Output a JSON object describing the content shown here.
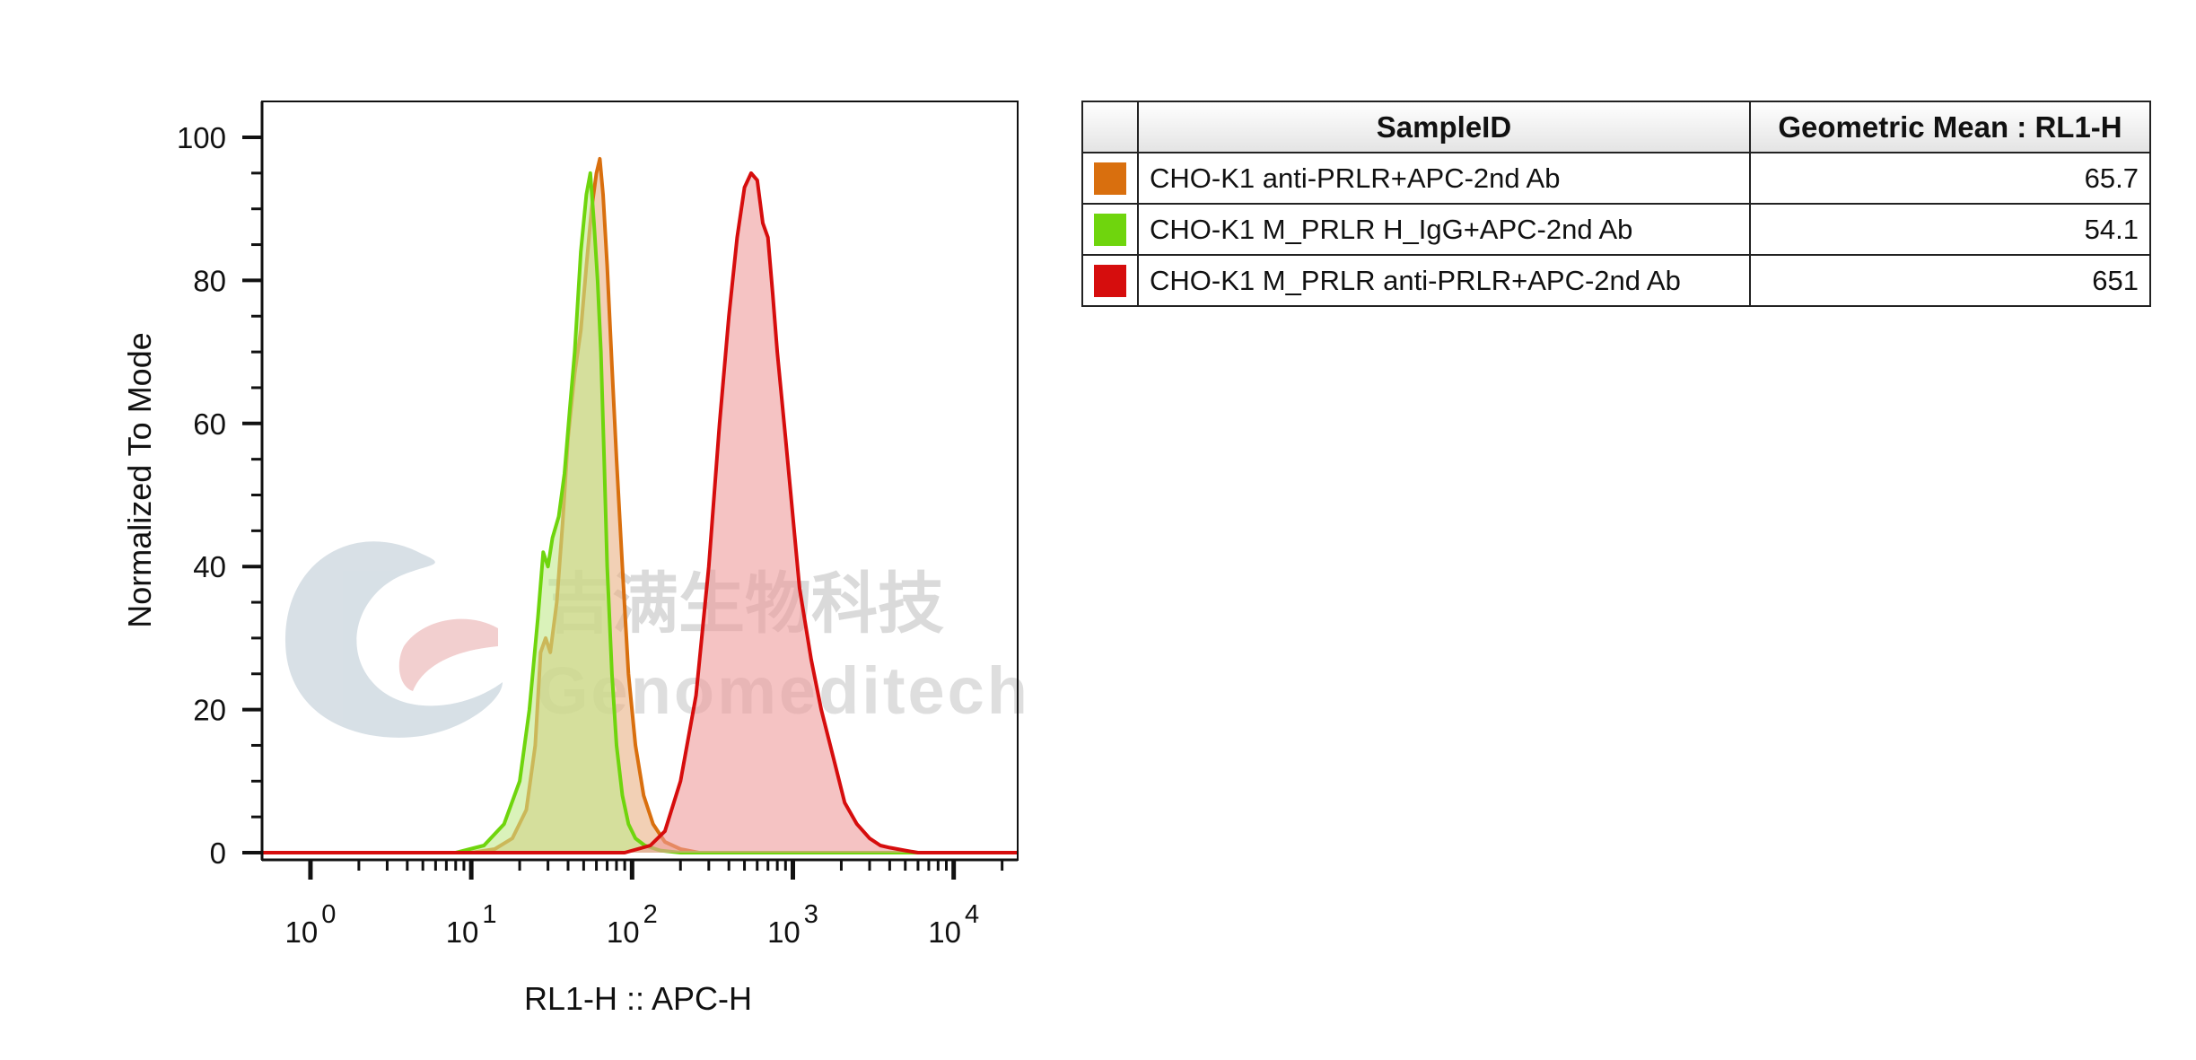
{
  "chart_data": {
    "type": "area",
    "x_scale": "log",
    "xlabel": "RL1-H :: APC-H",
    "ylabel": "Normalized To Mode",
    "xlim": [
      0.5,
      25000
    ],
    "ylim": [
      0,
      105
    ],
    "x_ticks": [
      {
        "value": 1,
        "base": "10",
        "exp": "0"
      },
      {
        "value": 10,
        "base": "10",
        "exp": "1"
      },
      {
        "value": 100,
        "base": "10",
        "exp": "2"
      },
      {
        "value": 1000,
        "base": "10",
        "exp": "3"
      },
      {
        "value": 10000,
        "base": "10",
        "exp": "4"
      }
    ],
    "y_ticks": [
      0,
      20,
      40,
      60,
      80,
      100
    ],
    "grid": false,
    "series": [
      {
        "name": "CHO-K1 anti-PRLR+APC-2nd Ab",
        "color": "#d96f0e",
        "fill": "#e9b084",
        "x": [
          0.5,
          10,
          14,
          18,
          22,
          25,
          27,
          29,
          31,
          34,
          37,
          40,
          44,
          48,
          52,
          56,
          60,
          63,
          66,
          70,
          75,
          80,
          87,
          95,
          105,
          118,
          135,
          160,
          200,
          260,
          350,
          25000
        ],
        "values": [
          0,
          0,
          0.5,
          2,
          6,
          15,
          28,
          30,
          28,
          35,
          46,
          58,
          67,
          73,
          82,
          90,
          95,
          97,
          92,
          82,
          68,
          55,
          40,
          25,
          15,
          8,
          4,
          1.5,
          0.5,
          0,
          0,
          0
        ]
      },
      {
        "name": "CHO-K1 M_PRLR H_IgG+APC-2nd Ab",
        "color": "#6fd50d",
        "fill": "#c1ea8c",
        "x": [
          0.5,
          8,
          12,
          16,
          20,
          23,
          26,
          28,
          30,
          32,
          35,
          38,
          41,
          44,
          48,
          52,
          55,
          58,
          61,
          64,
          67,
          70,
          75,
          80,
          87,
          95,
          105,
          120,
          150,
          200,
          25000
        ],
        "values": [
          0,
          0,
          1,
          4,
          10,
          20,
          33,
          42,
          40,
          44,
          47,
          53,
          62,
          70,
          84,
          92,
          95,
          88,
          80,
          70,
          55,
          40,
          25,
          15,
          8,
          4,
          2,
          1,
          0.3,
          0,
          0
        ]
      },
      {
        "name": "CHO-K1 M_PRLR anti-PRLR+APC-2nd Ab",
        "color": "#d60d0d",
        "fill": "#ee9b9b",
        "x": [
          0.5,
          90,
          130,
          160,
          200,
          250,
          300,
          350,
          400,
          450,
          500,
          550,
          600,
          650,
          700,
          750,
          800,
          900,
          1000,
          1100,
          1300,
          1500,
          1800,
          2100,
          2500,
          3000,
          3500,
          4000,
          5000,
          6000,
          25000
        ],
        "values": [
          0,
          0,
          1,
          3,
          10,
          22,
          40,
          60,
          75,
          86,
          93,
          95,
          94,
          88,
          86,
          78,
          70,
          58,
          47,
          37,
          27,
          20,
          13,
          7,
          4,
          2,
          1,
          0.7,
          0.3,
          0,
          0
        ]
      }
    ]
  },
  "table": {
    "headers": {
      "sample": "SampleID",
      "value": "Geometric Mean : RL1-H"
    },
    "rows": [
      {
        "color": "#d96f0e",
        "sample": "CHO-K1 anti-PRLR+APC-2nd Ab",
        "value": "65.7"
      },
      {
        "color": "#6fd50d",
        "sample": "CHO-K1 M_PRLR H_IgG+APC-2nd Ab",
        "value": "54.1"
      },
      {
        "color": "#d60d0d",
        "sample": "CHO-K1 M_PRLR anti-PRLR+APC-2nd Ab",
        "value": "651"
      }
    ]
  },
  "watermark": {
    "chinese": "吉满生物科技",
    "english": "Genomeditech"
  }
}
